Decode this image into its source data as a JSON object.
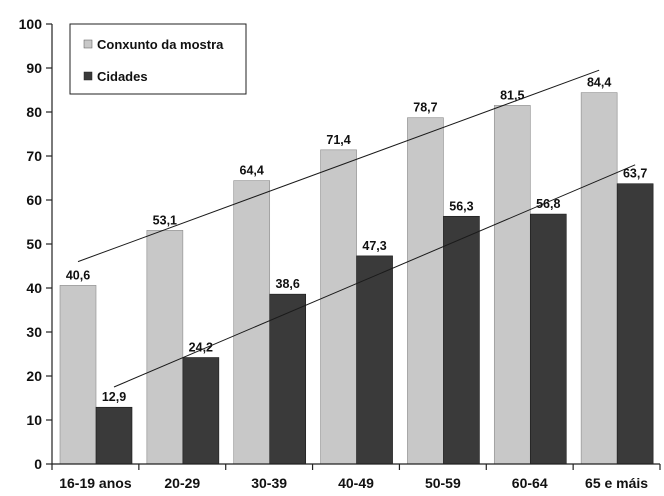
{
  "chart_data": {
    "type": "bar",
    "title": "",
    "xlabel": "",
    "ylabel": "",
    "ylim": [
      0,
      100
    ],
    "yticks": [
      0,
      10,
      20,
      30,
      40,
      50,
      60,
      70,
      80,
      90,
      100
    ],
    "grid": false,
    "legend_position": "top-left",
    "categories": [
      "16-19 anos",
      "20-29",
      "30-39",
      "40-49",
      "50-59",
      "60-64",
      "65 e máis"
    ],
    "series": [
      {
        "name": "Conxunto da mostra",
        "color": "#c8c8c8",
        "values": [
          40.6,
          53.1,
          64.4,
          71.4,
          78.7,
          81.5,
          84.4
        ],
        "labels": [
          "40,6",
          "53,1",
          "64,4",
          "71,4",
          "78,7",
          "81,5",
          "84,4"
        ],
        "trendline": [
          46,
          89.5
        ]
      },
      {
        "name": "Cidades",
        "color": "#3a3a3a",
        "values": [
          12.9,
          24.2,
          38.6,
          47.3,
          56.3,
          56.8,
          63.7
        ],
        "labels": [
          "12,9",
          "24,2",
          "38,6",
          "47,3",
          "56,3",
          "56,8",
          "63,7"
        ],
        "trendline": [
          17.5,
          68
        ]
      }
    ]
  }
}
